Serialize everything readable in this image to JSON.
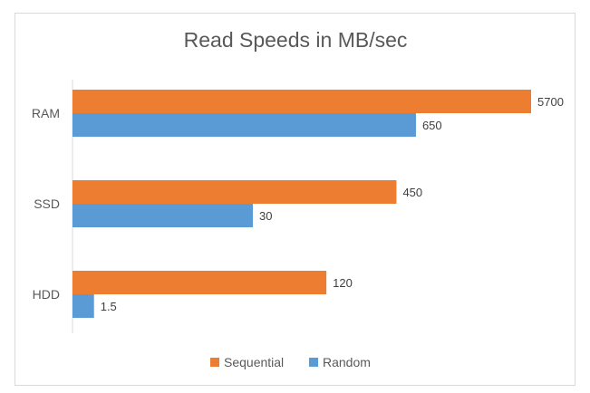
{
  "chart_data": {
    "type": "bar",
    "orientation": "horizontal",
    "title": "Read Speeds in MB/sec",
    "categories": [
      "RAM",
      "SSD",
      "HDD"
    ],
    "series": [
      {
        "name": "Sequential",
        "color": "#ED7D31",
        "values": [
          5700,
          450,
          120
        ]
      },
      {
        "name": "Random",
        "color": "#5B9BD5",
        "values": [
          650,
          30,
          1.5
        ]
      }
    ],
    "value_labels": [
      [
        "5700",
        "450",
        "120"
      ],
      [
        "650",
        "30",
        "1.5"
      ]
    ],
    "axis_scale": "log",
    "xlim": [
      1,
      10000
    ],
    "xlabel": "",
    "ylabel": "",
    "grid": false,
    "legend_position": "bottom"
  }
}
